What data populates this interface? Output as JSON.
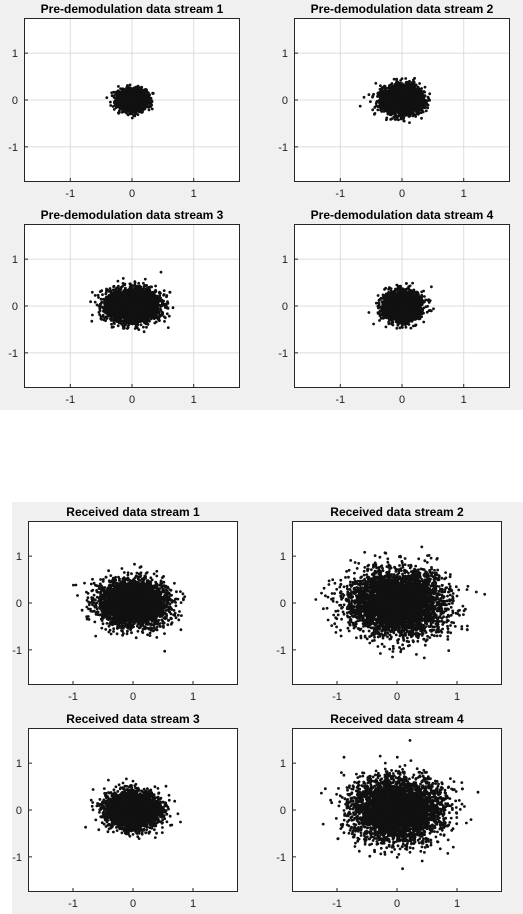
{
  "panels": [
    {
      "name": "pre-demodulation-panel",
      "charts": [
        {
          "type": "scatter",
          "title": "Pre-demodulation data stream 1",
          "xlim": [
            -1.75,
            1.75
          ],
          "ylim": [
            -1.75,
            1.75
          ],
          "xticks": [
            -1,
            0,
            1
          ],
          "yticks": [
            1,
            0,
            -1
          ],
          "grid": true,
          "spread": {
            "x": 0.2,
            "y": 0.18
          },
          "point_count": 3500,
          "center": [
            0,
            0
          ]
        },
        {
          "type": "scatter",
          "title": "Pre-demodulation data stream 2",
          "xlim": [
            -1.75,
            1.75
          ],
          "ylim": [
            -1.75,
            1.75
          ],
          "xticks": [
            -1,
            0,
            1
          ],
          "yticks": [
            1,
            0,
            -1
          ],
          "grid": true,
          "spread": {
            "x": 0.28,
            "y": 0.26
          },
          "point_count": 3500,
          "center": [
            0,
            0
          ]
        },
        {
          "type": "scatter",
          "title": "Pre-demodulation data stream 3",
          "xlim": [
            -1.75,
            1.75
          ],
          "ylim": [
            -1.75,
            1.75
          ],
          "xticks": [
            -1,
            0,
            1
          ],
          "yticks": [
            1,
            0,
            -1
          ],
          "grid": true,
          "spread": {
            "x": 0.36,
            "y": 0.3
          },
          "point_count": 4000,
          "center": [
            0,
            0
          ]
        },
        {
          "type": "scatter",
          "title": "Pre-demodulation data stream 4",
          "xlim": [
            -1.75,
            1.75
          ],
          "ylim": [
            -1.75,
            1.75
          ],
          "xticks": [
            -1,
            0,
            1
          ],
          "yticks": [
            1,
            0,
            -1
          ],
          "grid": true,
          "spread": {
            "x": 0.26,
            "y": 0.26
          },
          "point_count": 3500,
          "center": [
            0,
            0
          ]
        }
      ]
    },
    {
      "name": "received-panel",
      "charts": [
        {
          "type": "scatter",
          "title": "Received data stream 1",
          "xlim": [
            -1.75,
            1.75
          ],
          "ylim": [
            -1.75,
            1.75
          ],
          "xticks": [
            -1,
            0,
            1
          ],
          "yticks": [
            1,
            0,
            -1
          ],
          "grid": false,
          "spread": {
            "x": 0.5,
            "y": 0.42
          },
          "point_count": 4000,
          "center": [
            0,
            0
          ]
        },
        {
          "type": "scatter",
          "title": "Received data stream 2",
          "xlim": [
            -1.75,
            1.75
          ],
          "ylim": [
            -1.75,
            1.75
          ],
          "xticks": [
            -1,
            0,
            1
          ],
          "yticks": [
            1,
            0,
            -1
          ],
          "grid": false,
          "spread": {
            "x": 0.7,
            "y": 0.6
          },
          "point_count": 4500,
          "center": [
            0,
            0
          ]
        },
        {
          "type": "scatter",
          "title": "Received data stream 3",
          "xlim": [
            -1.75,
            1.75
          ],
          "ylim": [
            -1.75,
            1.75
          ],
          "xticks": [
            -1,
            0,
            1
          ],
          "yticks": [
            1,
            0,
            -1
          ],
          "grid": false,
          "spread": {
            "x": 0.38,
            "y": 0.34
          },
          "point_count": 3500,
          "center": [
            0,
            0
          ]
        },
        {
          "type": "scatter",
          "title": "Received data stream 4",
          "xlim": [
            -1.75,
            1.75
          ],
          "ylim": [
            -1.75,
            1.75
          ],
          "xticks": [
            -1,
            0,
            1
          ],
          "yticks": [
            1,
            0,
            -1
          ],
          "grid": false,
          "spread": {
            "x": 0.66,
            "y": 0.58
          },
          "point_count": 4500,
          "center": [
            0,
            0
          ]
        }
      ]
    }
  ],
  "colors": {
    "marker": "#111111",
    "axis_background": "#ffffff",
    "axis_border": "#262626",
    "grid": "#dcdcdc",
    "figure_background": "#f0f0f0"
  },
  "chart_data": [
    {
      "type": "scatter",
      "title": "Pre-demodulation data stream 1",
      "x_range": [
        -0.55,
        0.55
      ],
      "y_range": [
        -0.45,
        0.45
      ]
    },
    {
      "type": "scatter",
      "title": "Pre-demodulation data stream 2",
      "x_range": [
        -0.6,
        0.65
      ],
      "y_range": [
        -0.7,
        0.6
      ]
    },
    {
      "type": "scatter",
      "title": "Pre-demodulation data stream 3",
      "x_range": [
        -0.8,
        0.85
      ],
      "y_range": [
        -0.75,
        0.75
      ]
    },
    {
      "type": "scatter",
      "title": "Pre-demodulation data stream 4",
      "x_range": [
        -0.55,
        0.55
      ],
      "y_range": [
        -0.7,
        0.6
      ]
    },
    {
      "type": "scatter",
      "title": "Received data stream 1",
      "x_range": [
        -1.1,
        1.3
      ],
      "y_range": [
        -1.4,
        1.3
      ]
    },
    {
      "type": "scatter",
      "title": "Received data stream 2",
      "x_range": [
        -1.6,
        1.7
      ],
      "y_range": [
        -1.7,
        1.6
      ]
    },
    {
      "type": "scatter",
      "title": "Received data stream 3",
      "x_range": [
        -0.85,
        0.95
      ],
      "y_range": [
        -0.85,
        0.95
      ]
    },
    {
      "type": "scatter",
      "title": "Received data stream 4",
      "x_range": [
        -1.4,
        1.7
      ],
      "y_range": [
        -1.6,
        1.5
      ]
    }
  ]
}
